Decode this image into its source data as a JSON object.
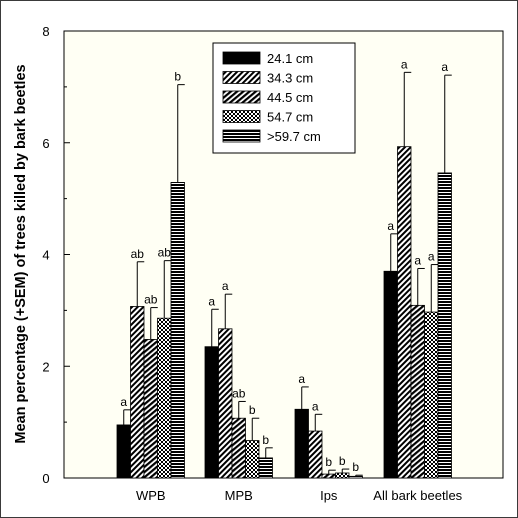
{
  "chart_data": {
    "type": "bar",
    "categories": [
      "WPB",
      "MPB",
      "Ips",
      "All bark beetles"
    ],
    "ylabel": "Mean percentage (+SEM) of trees killed by bark beetles",
    "xlabel": "",
    "ylim": [
      0,
      8
    ],
    "yticks": [
      "0",
      "2",
      "4",
      "6",
      "8"
    ],
    "legend_position": "top-center",
    "grid": false,
    "series": [
      {
        "name": "24.1 cm",
        "pattern": "solid",
        "values": [
          0.95,
          2.35,
          1.23,
          3.7
        ],
        "sem": [
          0.27,
          0.67,
          0.4,
          0.67
        ],
        "letters": [
          "a",
          "a",
          "a",
          "a"
        ]
      },
      {
        "name": "34.3 cm",
        "pattern": "diagonal",
        "values": [
          3.07,
          2.67,
          0.84,
          5.93
        ],
        "sem": [
          0.8,
          0.62,
          0.3,
          1.33
        ],
        "letters": [
          "ab",
          "a",
          "a",
          "a"
        ]
      },
      {
        "name": "44.5 cm",
        "pattern": "horizontal",
        "values": [
          2.48,
          1.07,
          0.07,
          3.09
        ],
        "sem": [
          0.57,
          0.3,
          0.07,
          0.66
        ],
        "letters": [
          "ab",
          "ab",
          "b",
          "a"
        ]
      },
      {
        "name": "54.7 cm",
        "pattern": "crosshatch",
        "values": [
          2.86,
          0.67,
          0.09,
          2.97
        ],
        "sem": [
          1.03,
          0.4,
          0.07,
          0.85
        ],
        "letters": [
          "ab",
          "b",
          "b",
          "a"
        ]
      },
      {
        "name": ">59.7 cm",
        "pattern": "dense-horizontal",
        "values": [
          5.29,
          0.36,
          0.03,
          5.46
        ],
        "sem": [
          1.75,
          0.18,
          0.02,
          1.75
        ],
        "letters": [
          "b",
          "b",
          "b",
          "a"
        ]
      }
    ]
  }
}
